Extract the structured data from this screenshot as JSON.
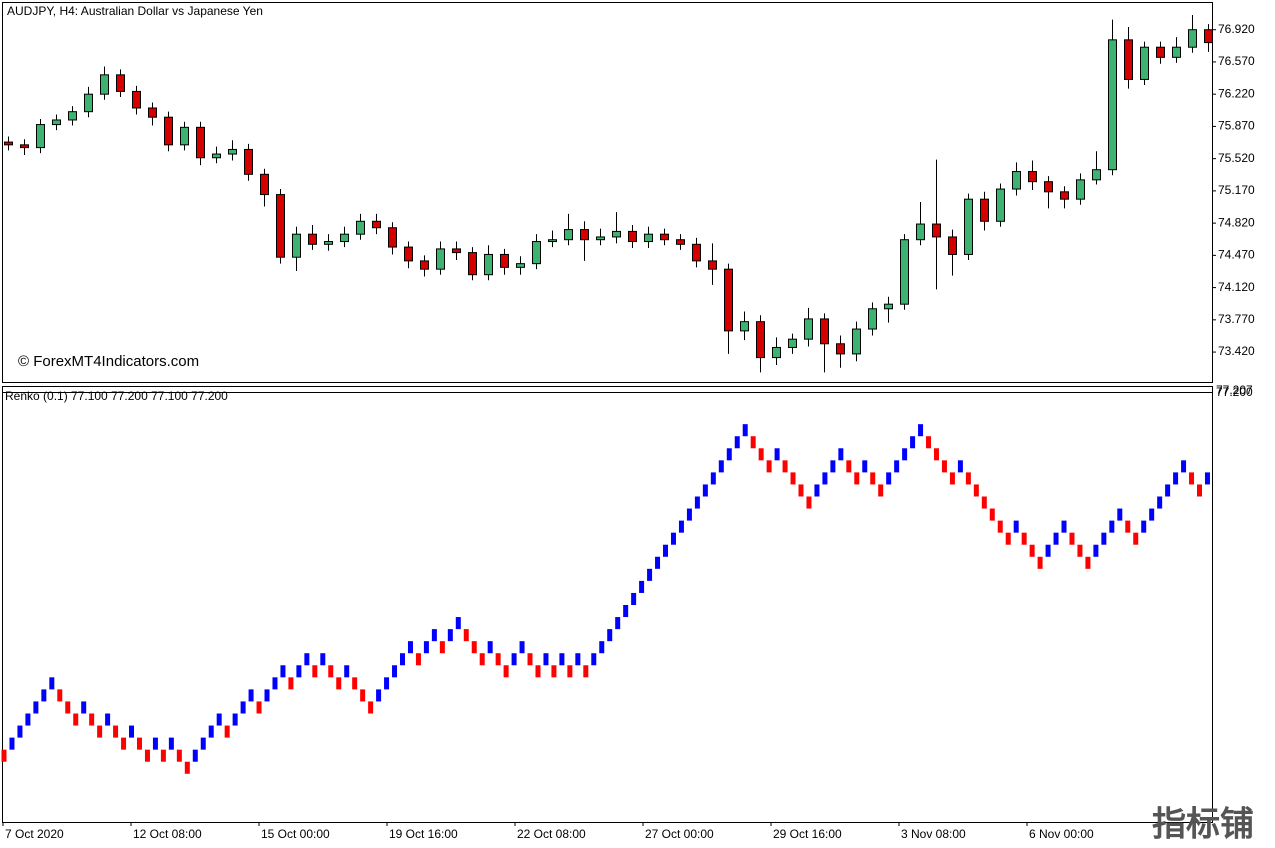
{
  "chart_data": [
    {
      "type": "candlestick",
      "title": "AUDJPY, H4:  Australian Dollar vs Japanese Yen",
      "annotation": "© ForexMT4Indicators.com",
      "x_labels": [
        "7 Oct 2020",
        "12 Oct 08:00",
        "15 Oct 00:00",
        "19 Oct 16:00",
        "22 Oct 08:00",
        "27 Oct 00:00",
        "29 Oct 16:00",
        "3 Nov 08:00",
        "6 Nov 00:00"
      ],
      "open": [
        75.7,
        75.67,
        75.64,
        75.89,
        75.94,
        76.03,
        76.22,
        76.43,
        76.25,
        76.07,
        75.97,
        75.67,
        75.86,
        75.53,
        75.57,
        75.62,
        75.35,
        75.13,
        74.45,
        74.7,
        74.59,
        74.62,
        74.7,
        74.84,
        74.77,
        74.56,
        74.41,
        74.32,
        74.54,
        74.5,
        74.26,
        74.48,
        74.34,
        74.38,
        74.62,
        74.64,
        74.75,
        74.64,
        74.67,
        74.73,
        74.62,
        74.7,
        74.64,
        74.59,
        74.41,
        74.32,
        73.65,
        73.75,
        73.36,
        73.47,
        73.56,
        73.78,
        73.51,
        73.4,
        73.67,
        73.89,
        73.94,
        74.64,
        74.81,
        74.67,
        74.48,
        75.08,
        74.84,
        75.19,
        75.38,
        75.27,
        75.16,
        75.08,
        75.29,
        75.4,
        76.81,
        76.38,
        76.73,
        76.62,
        76.73,
        76.92
      ],
      "high": [
        75.76,
        75.73,
        75.95,
        76.0,
        76.09,
        76.3,
        76.52,
        76.49,
        76.31,
        76.13,
        76.03,
        75.92,
        75.92,
        75.65,
        75.72,
        75.68,
        75.41,
        75.19,
        74.78,
        74.8,
        74.7,
        74.78,
        74.92,
        74.92,
        74.83,
        74.62,
        74.47,
        74.62,
        74.62,
        74.56,
        74.58,
        74.54,
        74.46,
        74.7,
        74.74,
        74.92,
        74.84,
        74.76,
        74.94,
        74.8,
        74.78,
        74.76,
        74.7,
        74.66,
        74.6,
        74.38,
        73.86,
        73.82,
        73.58,
        73.62,
        73.9,
        73.84,
        73.6,
        73.75,
        73.96,
        74.02,
        74.7,
        75.05,
        75.51,
        74.75,
        75.14,
        75.16,
        75.25,
        75.48,
        75.5,
        75.33,
        75.22,
        75.36,
        75.6,
        77.03,
        76.95,
        76.79,
        76.79,
        76.84,
        77.08,
        76.98
      ],
      "low": [
        75.61,
        75.56,
        75.58,
        75.83,
        75.88,
        75.97,
        76.16,
        76.19,
        76.0,
        75.88,
        75.6,
        75.61,
        75.45,
        75.47,
        75.5,
        75.28,
        75.0,
        74.38,
        74.3,
        74.53,
        74.52,
        74.56,
        74.64,
        74.7,
        74.48,
        74.33,
        74.24,
        74.26,
        74.42,
        74.2,
        74.2,
        74.26,
        74.26,
        74.32,
        74.56,
        74.58,
        74.41,
        74.58,
        74.6,
        74.55,
        74.55,
        74.58,
        74.53,
        74.34,
        74.15,
        73.4,
        73.55,
        73.2,
        73.28,
        73.4,
        73.48,
        73.2,
        73.25,
        73.32,
        73.6,
        73.74,
        73.88,
        74.58,
        74.1,
        74.25,
        74.42,
        74.74,
        74.78,
        75.12,
        75.18,
        74.98,
        74.98,
        75.02,
        75.24,
        75.34,
        76.28,
        76.32,
        76.55,
        76.56,
        76.67,
        76.68
      ],
      "close": [
        75.67,
        75.64,
        75.89,
        75.94,
        76.03,
        76.22,
        76.43,
        76.25,
        76.07,
        75.97,
        75.67,
        75.86,
        75.53,
        75.57,
        75.62,
        75.35,
        75.13,
        74.45,
        74.7,
        74.59,
        74.62,
        74.7,
        74.84,
        74.77,
        74.56,
        74.41,
        74.32,
        74.54,
        74.5,
        74.26,
        74.48,
        74.34,
        74.38,
        74.62,
        74.64,
        74.75,
        74.64,
        74.67,
        74.73,
        74.62,
        74.7,
        74.64,
        74.59,
        74.41,
        74.32,
        73.65,
        73.75,
        73.36,
        73.47,
        73.56,
        73.78,
        73.51,
        73.4,
        73.67,
        73.89,
        73.94,
        74.64,
        74.81,
        74.67,
        74.48,
        75.08,
        74.84,
        75.19,
        75.38,
        75.27,
        75.16,
        75.08,
        75.29,
        75.4,
        76.81,
        76.38,
        76.73,
        76.62,
        76.73,
        76.92,
        76.78
      ],
      "up_color": "#3cb371",
      "down_color": "#d40000",
      "ylim": [
        73.095,
        77.21
      ],
      "yticks": [
        {
          "value": 76.92,
          "label": "76.920"
        },
        {
          "value": 76.57,
          "label": "76.570"
        },
        {
          "value": 76.22,
          "label": "76.220"
        },
        {
          "value": 75.87,
          "label": "75.870"
        },
        {
          "value": 75.52,
          "label": "75.520"
        },
        {
          "value": 75.17,
          "label": "75.170"
        },
        {
          "value": 74.82,
          "label": "74.820"
        },
        {
          "value": 74.47,
          "label": "74.470"
        },
        {
          "value": 74.12,
          "label": "74.120"
        },
        {
          "value": 73.77,
          "label": "73.770"
        },
        {
          "value": 73.42,
          "label": "73.420"
        }
      ]
    },
    {
      "type": "renko",
      "title": "Renko (0.1) 77.100 77.200 77.100 77.200",
      "box_size": 0.1,
      "scale_labels": [
        "77.207",
        "77.200"
      ],
      "up_color": "#0000ff",
      "down_color": "#ff0000",
      "ylim": [
        74.3,
        77.9
      ],
      "values": [
        74.9,
        75.0,
        75.1,
        75.2,
        75.3,
        75.4,
        75.5,
        75.4,
        75.3,
        75.2,
        75.3,
        75.2,
        75.1,
        75.2,
        75.1,
        75.0,
        75.1,
        75.0,
        74.9,
        75.0,
        74.9,
        75.0,
        74.9,
        74.8,
        74.9,
        75.0,
        75.1,
        75.2,
        75.1,
        75.2,
        75.3,
        75.4,
        75.3,
        75.4,
        75.5,
        75.6,
        75.5,
        75.6,
        75.7,
        75.6,
        75.7,
        75.6,
        75.5,
        75.6,
        75.5,
        75.4,
        75.3,
        75.4,
        75.5,
        75.6,
        75.7,
        75.8,
        75.7,
        75.8,
        75.9,
        75.8,
        75.9,
        76.0,
        75.9,
        75.8,
        75.7,
        75.8,
        75.7,
        75.6,
        75.7,
        75.8,
        75.7,
        75.6,
        75.7,
        75.6,
        75.7,
        75.6,
        75.7,
        75.6,
        75.7,
        75.8,
        75.9,
        76.0,
        76.1,
        76.2,
        76.3,
        76.4,
        76.5,
        76.6,
        76.7,
        76.8,
        76.9,
        77.0,
        77.1,
        77.2,
        77.3,
        77.4,
        77.5,
        77.6,
        77.5,
        77.4,
        77.3,
        77.4,
        77.3,
        77.2,
        77.1,
        77.0,
        77.1,
        77.2,
        77.3,
        77.4,
        77.3,
        77.2,
        77.3,
        77.2,
        77.1,
        77.2,
        77.3,
        77.4,
        77.5,
        77.6,
        77.5,
        77.4,
        77.3,
        77.2,
        77.3,
        77.2,
        77.1,
        77.0,
        76.9,
        76.8,
        76.7,
        76.8,
        76.7,
        76.6,
        76.5,
        76.6,
        76.7,
        76.8,
        76.7,
        76.6,
        76.5,
        76.6,
        76.7,
        76.8,
        76.9,
        76.8,
        76.7,
        76.8,
        76.9,
        77.0,
        77.1,
        77.2,
        77.3,
        77.2,
        77.1,
        77.2
      ]
    }
  ],
  "watermark": "指标铺"
}
